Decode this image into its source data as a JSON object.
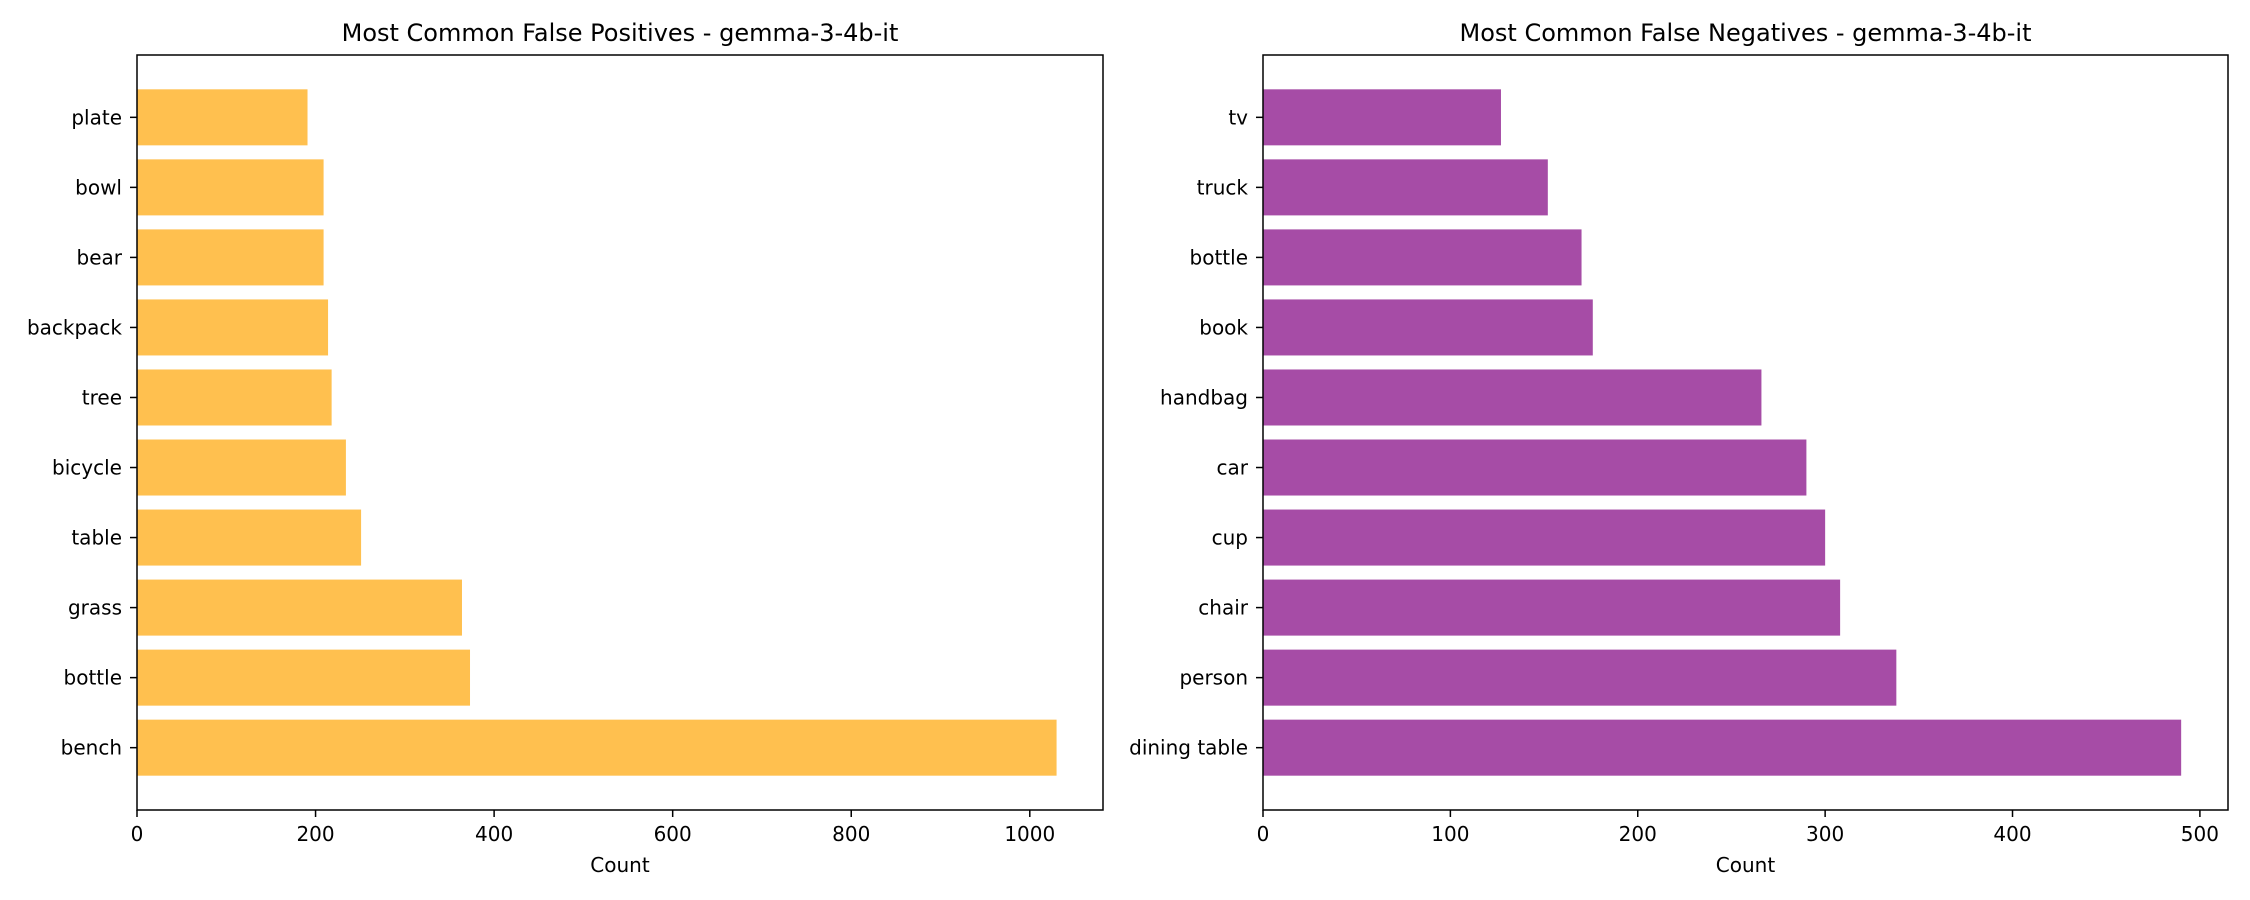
{
  "chart_data": [
    {
      "type": "bar",
      "orientation": "horizontal",
      "title": "Most Common False Positives - gemma-3-4b-it",
      "xlabel": "Count",
      "ylabel": "",
      "categories": [
        "bench",
        "bottle",
        "grass",
        "table",
        "bicycle",
        "tree",
        "backpack",
        "bear",
        "bowl",
        "plate"
      ],
      "values": [
        1030,
        373,
        364,
        251,
        234,
        218,
        214,
        209,
        209,
        191
      ],
      "xlim": [
        0,
        1082
      ],
      "xticks": [
        0,
        200,
        400,
        600,
        800,
        1000
      ],
      "bar_color": "#FFC04F",
      "grid": false,
      "legend": "none"
    },
    {
      "type": "bar",
      "orientation": "horizontal",
      "title": "Most Common False Negatives - gemma-3-4b-it",
      "xlabel": "Count",
      "ylabel": "",
      "categories": [
        "dining table",
        "person",
        "chair",
        "cup",
        "car",
        "handbag",
        "book",
        "bottle",
        "truck",
        "tv"
      ],
      "values": [
        490,
        338,
        308,
        300,
        290,
        266,
        176,
        170,
        152,
        127
      ],
      "xlim": [
        0,
        515
      ],
      "xticks": [
        0,
        100,
        200,
        300,
        400,
        500
      ],
      "bar_color": "#A64CA6",
      "grid": false,
      "legend": "none"
    }
  ]
}
